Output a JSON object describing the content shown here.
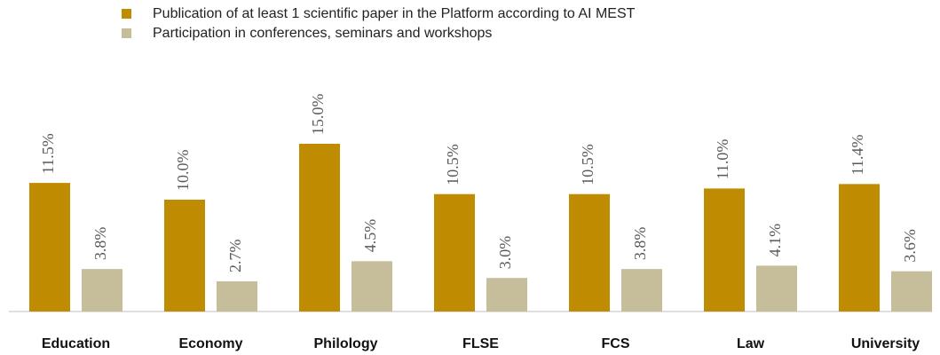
{
  "chart_data": {
    "type": "bar",
    "categories": [
      "Education",
      "Economy",
      "Philology",
      "FLSE",
      "FCS",
      "Law",
      "University"
    ],
    "series": [
      {
        "name": "Publication of at least 1 scientific paper in the Platform according to AI MEST",
        "color": "#bf8b00",
        "values": [
          11.5,
          10.0,
          15.0,
          10.5,
          10.5,
          11.0,
          11.4
        ],
        "value_labels": [
          "11.5%",
          "10.0%",
          "15.0%",
          "10.5%",
          "10.5%",
          "11.0%",
          "11.4%"
        ]
      },
      {
        "name": "Participation in conferences, seminars and workshops",
        "color": "#c6be9a",
        "values": [
          3.8,
          2.7,
          4.5,
          3.0,
          3.8,
          4.1,
          3.6
        ],
        "value_labels": [
          "3.8%",
          "2.7%",
          "4.5%",
          "3.0%",
          "3.8%",
          "4.1%",
          "3.6%"
        ]
      }
    ]
  }
}
